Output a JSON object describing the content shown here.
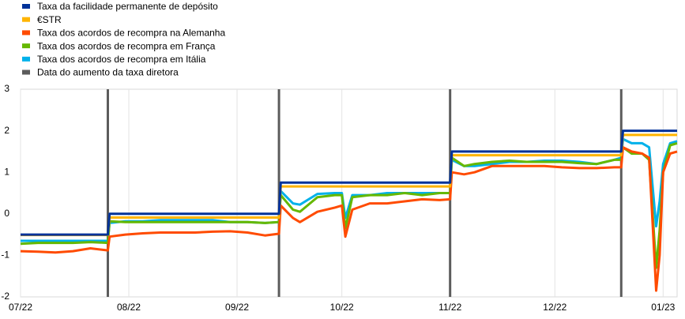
{
  "chart_data": {
    "type": "line",
    "x": [
      0,
      5,
      10,
      15,
      20,
      25,
      25.5,
      30,
      35,
      40,
      45,
      50,
      55,
      60,
      65,
      70,
      74,
      74.5,
      78,
      80,
      85,
      90,
      92,
      93,
      95,
      100,
      105,
      110,
      115,
      120,
      123,
      123.5,
      127,
      130,
      135,
      140,
      145,
      150,
      155,
      160,
      165,
      170,
      172,
      172.5,
      175,
      178,
      180,
      182,
      183,
      184,
      186,
      188
    ],
    "series": [
      {
        "name": "Taxa da facilidade permanente de depósito",
        "color": "#003299",
        "values": [
          -0.5,
          -0.5,
          -0.5,
          -0.5,
          -0.5,
          -0.5,
          0,
          0,
          0,
          0,
          0,
          0,
          0,
          0,
          0,
          0,
          0,
          0.75,
          0.75,
          0.75,
          0.75,
          0.75,
          0.75,
          0.75,
          0.75,
          0.75,
          0.75,
          0.75,
          0.75,
          0.75,
          0.75,
          1.5,
          1.5,
          1.5,
          1.5,
          1.5,
          1.5,
          1.5,
          1.5,
          1.5,
          1.5,
          1.5,
          1.5,
          2,
          2,
          2,
          2,
          2,
          2,
          2,
          2,
          2
        ]
      },
      {
        "name": "€STR",
        "color": "#ffb400",
        "values": [
          -0.51,
          -0.51,
          -0.51,
          -0.51,
          -0.51,
          -0.51,
          -0.09,
          -0.09,
          -0.09,
          -0.09,
          -0.09,
          -0.09,
          -0.09,
          -0.09,
          -0.09,
          -0.09,
          -0.09,
          0.66,
          0.66,
          0.66,
          0.66,
          0.66,
          0.66,
          0.66,
          0.66,
          0.66,
          0.66,
          0.66,
          0.66,
          0.66,
          0.66,
          1.41,
          1.41,
          1.41,
          1.41,
          1.41,
          1.41,
          1.41,
          1.41,
          1.41,
          1.41,
          1.41,
          1.41,
          1.9,
          1.9,
          1.9,
          1.9,
          1.9,
          1.9,
          1.9,
          1.9,
          1.9
        ]
      },
      {
        "name": "Taxa dos acordos de recompra na Alemanha",
        "color": "#ff4b00",
        "values": [
          -0.9,
          -0.91,
          -0.93,
          -0.9,
          -0.83,
          -0.88,
          -0.55,
          -0.5,
          -0.47,
          -0.45,
          -0.45,
          -0.45,
          -0.43,
          -0.42,
          -0.45,
          -0.52,
          -0.48,
          0.2,
          -0.1,
          -0.2,
          0.05,
          0.15,
          0.2,
          -0.55,
          0.1,
          0.25,
          0.25,
          0.3,
          0.35,
          0.33,
          0.35,
          1.0,
          0.95,
          1.0,
          1.15,
          1.15,
          1.15,
          1.15,
          1.12,
          1.1,
          1.1,
          1.12,
          1.12,
          1.6,
          1.5,
          1.45,
          1.35,
          -1.85,
          -1.0,
          1.0,
          1.45,
          1.5
        ]
      },
      {
        "name": "Taxa dos acordos de recompra em França",
        "color": "#65b800",
        "values": [
          -0.72,
          -0.7,
          -0.7,
          -0.7,
          -0.68,
          -0.7,
          -0.18,
          -0.2,
          -0.2,
          -0.2,
          -0.2,
          -0.2,
          -0.2,
          -0.2,
          -0.2,
          -0.22,
          -0.2,
          0.45,
          0.1,
          0.05,
          0.4,
          0.45,
          0.45,
          -0.35,
          0.4,
          0.45,
          0.45,
          0.5,
          0.45,
          0.5,
          0.5,
          1.35,
          1.15,
          1.2,
          1.25,
          1.28,
          1.25,
          1.25,
          1.25,
          1.22,
          1.2,
          1.3,
          1.3,
          1.6,
          1.45,
          1.45,
          1.3,
          -1.3,
          -0.4,
          1.0,
          1.65,
          1.7
        ]
      },
      {
        "name": "Taxa dos acordos de recompra em Itália",
        "color": "#00b1ea",
        "values": [
          -0.65,
          -0.65,
          -0.65,
          -0.65,
          -0.65,
          -0.65,
          -0.22,
          -0.18,
          -0.18,
          -0.15,
          -0.15,
          -0.15,
          -0.15,
          -0.2,
          -0.2,
          -0.22,
          -0.2,
          0.55,
          0.25,
          0.22,
          0.48,
          0.5,
          0.5,
          -0.1,
          0.45,
          0.45,
          0.5,
          0.5,
          0.5,
          0.5,
          0.5,
          1.3,
          1.15,
          1.15,
          1.2,
          1.25,
          1.25,
          1.28,
          1.28,
          1.25,
          1.2,
          1.3,
          1.35,
          1.8,
          1.7,
          1.7,
          1.6,
          -0.3,
          0.3,
          1.2,
          1.7,
          1.75
        ]
      }
    ],
    "hike_lines": {
      "name": "Data do aumento da taxa diretora",
      "color": "#5c5c5c",
      "x": [
        25,
        74,
        123,
        172
      ]
    },
    "xlim": [
      0,
      188
    ],
    "xticks": [
      {
        "value": 0,
        "label": "07/22"
      },
      {
        "value": 31,
        "label": "08/22"
      },
      {
        "value": 62,
        "label": "09/22"
      },
      {
        "value": 92,
        "label": "10/22"
      },
      {
        "value": 123,
        "label": "11/22"
      },
      {
        "value": 153,
        "label": "12/22"
      },
      {
        "value": 184,
        "label": "01/23"
      }
    ],
    "ylim": [
      -2,
      3
    ],
    "yticks": [
      -2,
      -1,
      0,
      1,
      2,
      3
    ],
    "grid": "x",
    "legend": "top-left"
  }
}
